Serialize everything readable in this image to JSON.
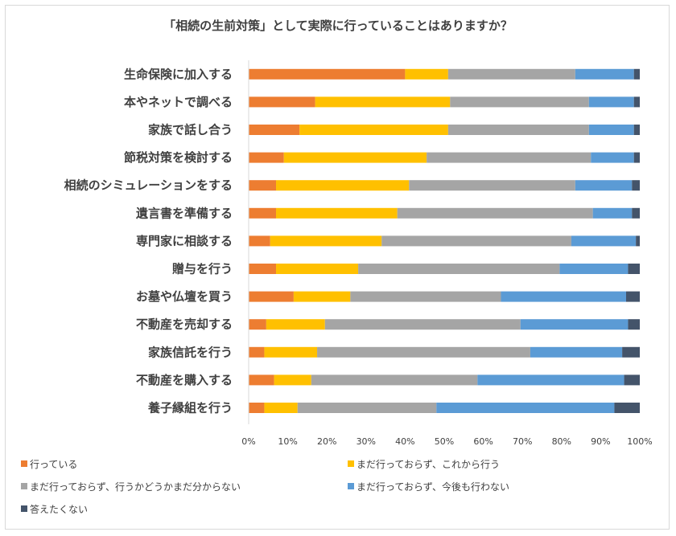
{
  "chart_data": {
    "type": "bar",
    "orientation": "horizontal",
    "stacked": true,
    "percent": true,
    "title": "「相続の生前対策」として実際に行っていることはありますか？",
    "categories": [
      "生命保険に加入する",
      "本やネットで調べる",
      "家族で話し合う",
      "節税対策を検討する",
      "相続のシミュレーションをする",
      "遺言書を準備する",
      "専門家に相談する",
      "贈与を行う",
      "お墓や仏壇を買う",
      "不動産を売却する",
      "家族信託を行う",
      "不動産を購入する",
      "養子縁組を行う"
    ],
    "series": [
      {
        "name": "行っている",
        "color": "#ED7D31",
        "values": [
          40,
          17,
          13,
          9,
          7,
          7,
          5.5,
          7,
          11.5,
          4.5,
          4,
          6.5,
          4
        ]
      },
      {
        "name": "まだ行っておらず、これから行う",
        "color": "#FFC000",
        "values": [
          11,
          34.5,
          38,
          36.5,
          34,
          31,
          28.5,
          21,
          14.5,
          15,
          13.5,
          9.5,
          8.5
        ]
      },
      {
        "name": "まだ行っておらず、行うかどうかまだ分からない",
        "color": "#A5A5A5",
        "values": [
          32.5,
          35.5,
          36,
          42,
          42.5,
          50,
          48.5,
          51.5,
          38.5,
          50,
          54.5,
          42.5,
          35.5
        ]
      },
      {
        "name": "まだ行っておらず、今後も行わない",
        "color": "#5B9BD5",
        "values": [
          15,
          11.5,
          11.5,
          11,
          14.5,
          10,
          16.5,
          17.5,
          32,
          27.5,
          23.5,
          37.5,
          45.5
        ]
      },
      {
        "name": "答えたくない",
        "color": "#44546A",
        "values": [
          1.5,
          1.5,
          1.5,
          1.5,
          2,
          2,
          1,
          3,
          3.5,
          3,
          4.5,
          4,
          6.5
        ]
      }
    ],
    "xlim": [
      0,
      100
    ],
    "xticks": [
      "0%",
      "10%",
      "20%",
      "30%",
      "40%",
      "50%",
      "60%",
      "70%",
      "80%",
      "90%",
      "100%"
    ],
    "grid": false,
    "legend_position": "bottom"
  }
}
